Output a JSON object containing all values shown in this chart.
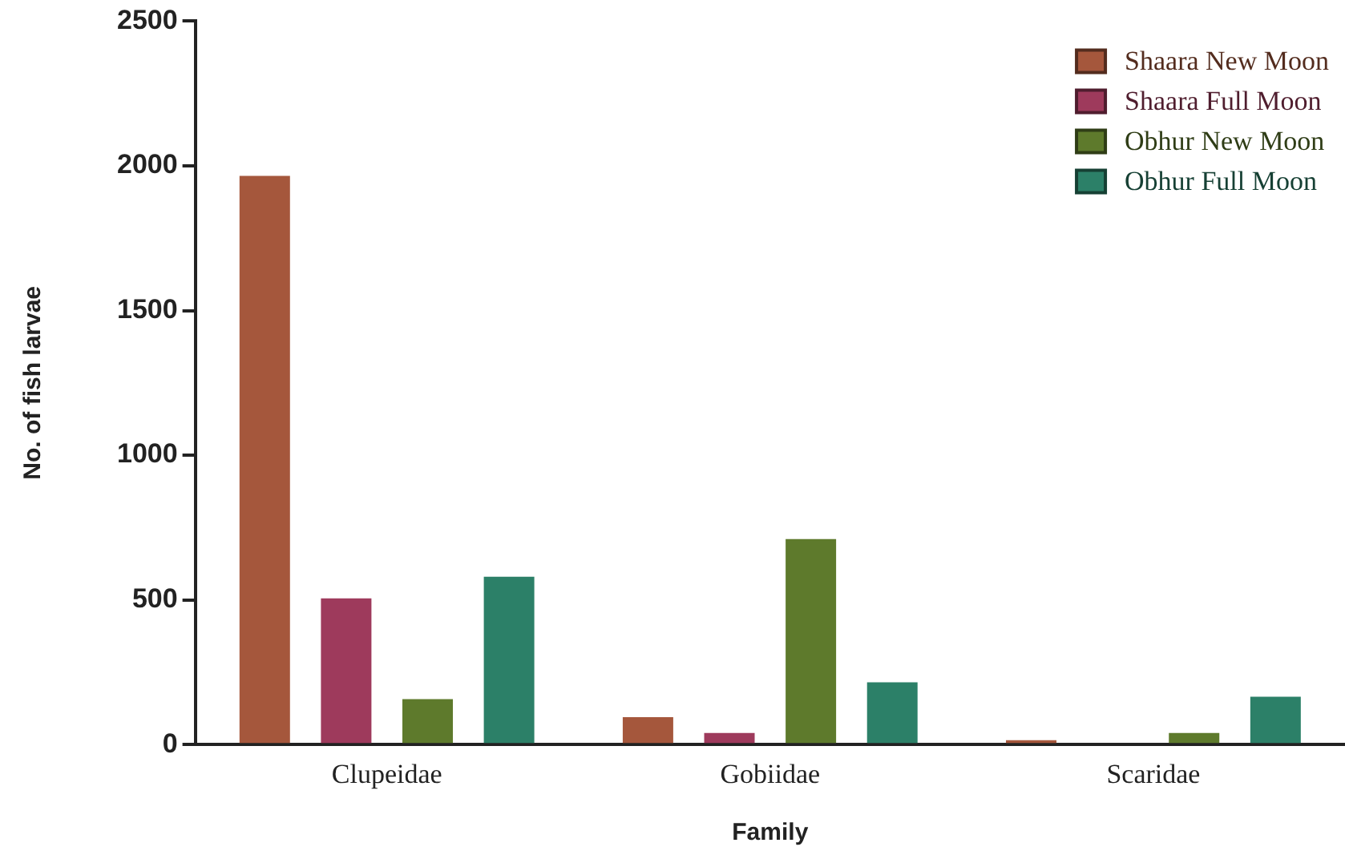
{
  "chart_data": {
    "type": "bar",
    "xlabel": "Family",
    "ylabel": "No. of fish larvae",
    "categories": [
      "Clupeidae",
      "Gobiidae",
      "Scaridae"
    ],
    "series": [
      {
        "name": "Shaara New Moon",
        "color": "#a5573c",
        "values": [
          1965,
          95,
          15
        ]
      },
      {
        "name": "Shaara Full Moon",
        "color": "#9e3a5c",
        "values": [
          505,
          40,
          0
        ]
      },
      {
        "name": "Obhur New Moon",
        "color": "#5e7a2c",
        "values": [
          157,
          710,
          40
        ]
      },
      {
        "name": "Obhur Full Moon",
        "color": "#2c8068",
        "values": [
          580,
          215,
          165
        ]
      }
    ],
    "ylim": [
      0,
      2500
    ],
    "yticks": [
      0,
      500,
      1000,
      1500,
      2000,
      2500
    ],
    "grid": false,
    "legend": "top right"
  }
}
